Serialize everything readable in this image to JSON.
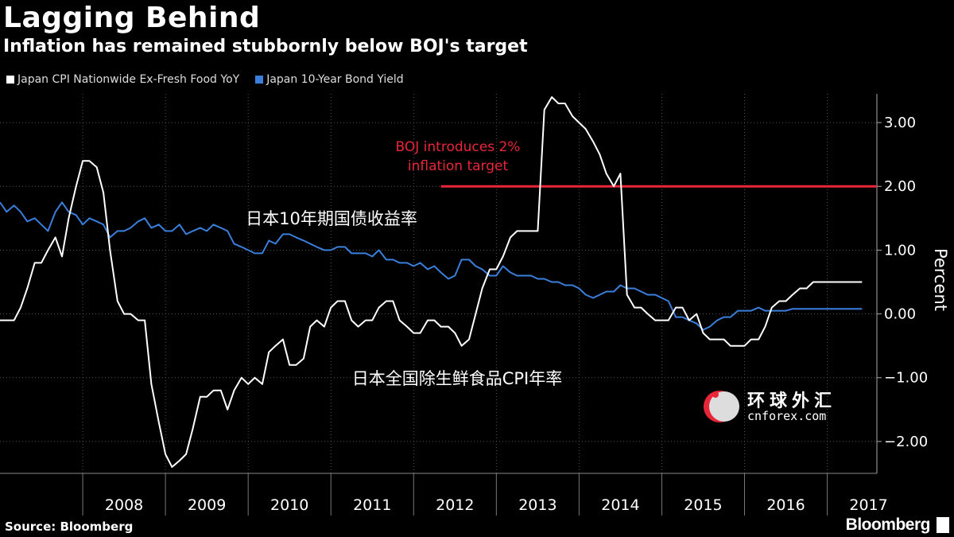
{
  "title": "Lagging Behind",
  "subtitle": "Inflation has remained stubbornly below BOJ's target",
  "legend": {
    "cpi_label": "Japan CPI Nationwide Ex-Fresh Food YoY",
    "bond_label": "Japan 10-Year Bond Yield"
  },
  "source": "Source: Bloomberg",
  "brand": "Bloomberg",
  "watermark": {
    "line1": "环球外汇",
    "line2": "cnforex.com"
  },
  "colors": {
    "cpi": "#ffffff",
    "bond": "#3a7fdc",
    "target": "#e8263a",
    "grid": "#555555"
  },
  "chart_data": {
    "type": "line",
    "x_ticks": [
      "2008",
      "2009",
      "2010",
      "2011",
      "2012",
      "2013",
      "2014",
      "2015",
      "2016",
      "2017"
    ],
    "ylabel": "Percent",
    "y_ticks": [
      "3.00",
      "2.00",
      "1.00",
      "0.00",
      "-1.00",
      "-2.00"
    ],
    "ylim": [
      -2.5,
      3.45
    ],
    "xlim": [
      2007.0,
      2017.6
    ],
    "grid": true,
    "annotations": {
      "target_text": [
        "BOJ introduces 2%",
        "inflation target"
      ],
      "target_value": 2.0,
      "target_start": 2012.33,
      "bond_label_cn": "日本10年期国债收益率",
      "cpi_label_cn": "日本全国除生鲜食品CPI年率"
    },
    "series": [
      {
        "name": "Japan CPI Nationwide Ex-Fresh Food YoY",
        "x": [
          2007.0,
          2007.08,
          2007.17,
          2007.25,
          2007.33,
          2007.42,
          2007.5,
          2007.58,
          2007.67,
          2007.75,
          2007.83,
          2007.92,
          2008.0,
          2008.08,
          2008.17,
          2008.25,
          2008.33,
          2008.42,
          2008.5,
          2008.58,
          2008.67,
          2008.75,
          2008.83,
          2008.92,
          2009.0,
          2009.08,
          2009.17,
          2009.25,
          2009.33,
          2009.42,
          2009.5,
          2009.58,
          2009.67,
          2009.75,
          2009.83,
          2009.92,
          2010.0,
          2010.08,
          2010.17,
          2010.25,
          2010.33,
          2010.42,
          2010.5,
          2010.58,
          2010.67,
          2010.75,
          2010.83,
          2010.92,
          2011.0,
          2011.08,
          2011.17,
          2011.25,
          2011.33,
          2011.42,
          2011.5,
          2011.58,
          2011.67,
          2011.75,
          2011.83,
          2011.92,
          2012.0,
          2012.08,
          2012.17,
          2012.25,
          2012.33,
          2012.42,
          2012.5,
          2012.58,
          2012.67,
          2012.75,
          2012.83,
          2012.92,
          2013.0,
          2013.08,
          2013.17,
          2013.25,
          2013.33,
          2013.42,
          2013.5,
          2013.58,
          2013.67,
          2013.75,
          2013.83,
          2013.92,
          2014.0,
          2014.08,
          2014.17,
          2014.25,
          2014.33,
          2014.42,
          2014.5,
          2014.58,
          2014.67,
          2014.75,
          2014.83,
          2014.92,
          2015.0,
          2015.08,
          2015.17,
          2015.25,
          2015.33,
          2015.42,
          2015.5,
          2015.58,
          2015.67,
          2015.75,
          2015.83,
          2015.92,
          2016.0,
          2016.08,
          2016.17,
          2016.25,
          2016.33,
          2016.42,
          2016.5,
          2016.58,
          2016.67,
          2016.75,
          2016.83,
          2016.92,
          2017.0,
          2017.08,
          2017.17,
          2017.25,
          2017.33,
          2017.42
        ],
        "values": [
          -0.1,
          -0.1,
          -0.1,
          0.1,
          0.4,
          0.8,
          0.8,
          1.0,
          1.2,
          0.9,
          1.5,
          2.0,
          2.4,
          2.4,
          2.3,
          1.9,
          1.0,
          0.2,
          0.0,
          0.0,
          -0.1,
          -0.1,
          -1.1,
          -1.7,
          -2.2,
          -2.4,
          -2.3,
          -2.2,
          -1.8,
          -1.3,
          -1.3,
          -1.2,
          -1.2,
          -1.5,
          -1.2,
          -1.0,
          -1.1,
          -1.0,
          -1.1,
          -0.6,
          -0.5,
          -0.4,
          -0.8,
          -0.8,
          -0.7,
          -0.2,
          -0.1,
          -0.2,
          0.1,
          0.2,
          0.2,
          -0.1,
          -0.2,
          -0.1,
          -0.1,
          0.1,
          0.2,
          0.2,
          -0.1,
          -0.2,
          -0.3,
          -0.3,
          -0.1,
          -0.1,
          -0.2,
          -0.2,
          -0.3,
          -0.5,
          -0.4,
          0.0,
          0.4,
          0.7,
          0.7,
          0.9,
          1.2,
          1.3,
          1.3,
          1.3,
          1.3,
          3.2,
          3.4,
          3.3,
          3.3,
          3.1,
          3.0,
          2.9,
          2.7,
          2.5,
          2.2,
          2.0,
          2.2,
          0.3,
          0.1,
          0.1,
          0.0,
          -0.1,
          -0.1,
          -0.1,
          0.1,
          0.1,
          -0.1,
          0.0,
          -0.3,
          -0.4,
          -0.4,
          -0.4,
          -0.5,
          -0.5,
          -0.5,
          -0.4,
          -0.4,
          -0.2,
          0.1,
          0.2,
          0.2,
          0.3,
          0.4,
          0.4,
          0.5,
          0.5,
          0.5,
          0.5,
          0.5,
          0.5,
          0.5,
          0.5
        ]
      },
      {
        "name": "Japan 10-Year Bond Yield",
        "x": [
          2007.0,
          2007.08,
          2007.17,
          2007.25,
          2007.33,
          2007.42,
          2007.5,
          2007.58,
          2007.67,
          2007.75,
          2007.83,
          2007.92,
          2008.0,
          2008.08,
          2008.17,
          2008.25,
          2008.33,
          2008.42,
          2008.5,
          2008.58,
          2008.67,
          2008.75,
          2008.83,
          2008.92,
          2009.0,
          2009.08,
          2009.17,
          2009.25,
          2009.33,
          2009.42,
          2009.5,
          2009.58,
          2009.67,
          2009.75,
          2009.83,
          2009.92,
          2010.0,
          2010.08,
          2010.17,
          2010.25,
          2010.33,
          2010.42,
          2010.5,
          2010.58,
          2010.67,
          2010.75,
          2010.83,
          2010.92,
          2011.0,
          2011.08,
          2011.17,
          2011.25,
          2011.33,
          2011.42,
          2011.5,
          2011.58,
          2011.67,
          2011.75,
          2011.83,
          2011.92,
          2012.0,
          2012.08,
          2012.17,
          2012.25,
          2012.33,
          2012.42,
          2012.5,
          2012.58,
          2012.67,
          2012.75,
          2012.83,
          2012.92,
          2013.0,
          2013.08,
          2013.17,
          2013.25,
          2013.33,
          2013.42,
          2013.5,
          2013.58,
          2013.67,
          2013.75,
          2013.83,
          2013.92,
          2014.0,
          2014.08,
          2014.17,
          2014.25,
          2014.33,
          2014.42,
          2014.5,
          2014.58,
          2014.67,
          2014.75,
          2014.83,
          2014.92,
          2015.0,
          2015.08,
          2015.17,
          2015.25,
          2015.33,
          2015.42,
          2015.5,
          2015.58,
          2015.67,
          2015.75,
          2015.83,
          2015.92,
          2016.0,
          2016.08,
          2016.17,
          2016.25,
          2016.33,
          2016.42,
          2016.5,
          2016.58,
          2016.67,
          2016.75,
          2016.83,
          2016.92,
          2017.0,
          2017.08,
          2017.17,
          2017.25,
          2017.33,
          2017.42
        ],
        "values": [
          1.75,
          1.6,
          1.7,
          1.6,
          1.45,
          1.5,
          1.4,
          1.3,
          1.6,
          1.75,
          1.6,
          1.55,
          1.4,
          1.5,
          1.45,
          1.4,
          1.2,
          1.3,
          1.3,
          1.35,
          1.45,
          1.5,
          1.35,
          1.4,
          1.3,
          1.3,
          1.4,
          1.25,
          1.3,
          1.35,
          1.3,
          1.4,
          1.35,
          1.3,
          1.1,
          1.05,
          1.0,
          0.95,
          0.95,
          1.15,
          1.1,
          1.25,
          1.25,
          1.2,
          1.15,
          1.1,
          1.05,
          1.0,
          1.0,
          1.05,
          1.05,
          0.95,
          0.95,
          0.95,
          0.9,
          1.0,
          0.85,
          0.85,
          0.8,
          0.8,
          0.75,
          0.8,
          0.7,
          0.75,
          0.65,
          0.55,
          0.6,
          0.85,
          0.85,
          0.75,
          0.7,
          0.6,
          0.6,
          0.75,
          0.65,
          0.6,
          0.6,
          0.6,
          0.55,
          0.55,
          0.5,
          0.5,
          0.45,
          0.45,
          0.4,
          0.3,
          0.25,
          0.3,
          0.35,
          0.35,
          0.45,
          0.4,
          0.4,
          0.35,
          0.3,
          0.3,
          0.25,
          0.2,
          -0.05,
          -0.05,
          -0.1,
          -0.15,
          -0.25,
          -0.2,
          -0.1,
          -0.05,
          -0.05,
          0.05,
          0.05,
          0.05,
          0.1,
          0.05,
          0.05,
          0.05,
          0.05,
          0.08,
          0.08,
          0.08,
          0.08,
          0.08,
          0.08,
          0.08,
          0.08,
          0.08,
          0.08,
          0.08
        ]
      }
    ]
  }
}
